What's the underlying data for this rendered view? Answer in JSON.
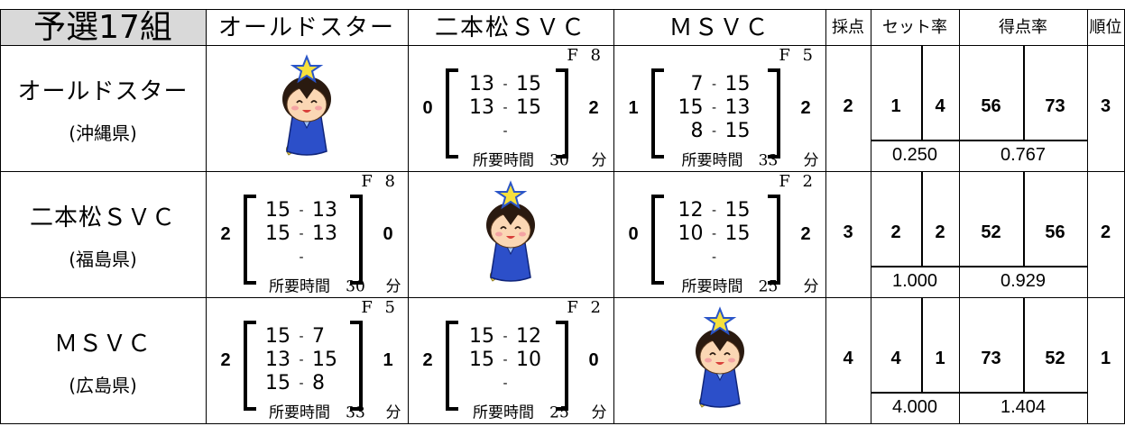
{
  "header": {
    "group": "予選17組",
    "teams": [
      "オールドスター",
      "二本松ＳＶＣ",
      "ＭＳＶＣ"
    ],
    "points": "採点",
    "set_rate": "セット率",
    "score_rate": "得点率",
    "rank": "順位"
  },
  "labels": {
    "separator": "-",
    "time_label": "所要時間",
    "time_unit": "分"
  },
  "rows": [
    {
      "team": "オールドスター",
      "prefecture": "(沖縄県)",
      "matches": [
        null,
        {
          "court": "F 8",
          "left": 0,
          "right": 2,
          "sets": [
            [
              13,
              15
            ],
            [
              13,
              15
            ],
            null
          ],
          "time": 30
        },
        {
          "court": "F 5",
          "left": 1,
          "right": 2,
          "sets": [
            [
              7,
              15
            ],
            [
              15,
              13
            ],
            [
              8,
              15
            ]
          ],
          "time": 33
        }
      ],
      "points": 2,
      "sets_won": 1,
      "sets_lost": 4,
      "set_rate": "0.250",
      "points_won": 56,
      "points_lost": 73,
      "score_rate": "0.767",
      "rank": 3
    },
    {
      "team": "二本松ＳＶＣ",
      "prefecture": "(福島県)",
      "matches": [
        {
          "court": "F 8",
          "left": 2,
          "right": 0,
          "sets": [
            [
              15,
              13
            ],
            [
              15,
              13
            ],
            null
          ],
          "time": 30
        },
        null,
        {
          "court": "F 2",
          "left": 0,
          "right": 2,
          "sets": [
            [
              12,
              15
            ],
            [
              10,
              15
            ],
            null
          ],
          "time": 25
        }
      ],
      "points": 3,
      "sets_won": 2,
      "sets_lost": 2,
      "set_rate": "1.000",
      "points_won": 52,
      "points_lost": 56,
      "score_rate": "0.929",
      "rank": 2
    },
    {
      "team": "ＭＳＶＣ",
      "prefecture": "(広島県)",
      "matches": [
        {
          "court": "F 5",
          "left": 2,
          "right": 1,
          "sets": [
            [
              15,
              7
            ],
            [
              13,
              15
            ],
            [
              15,
              8
            ]
          ],
          "time": 33
        },
        {
          "court": "F 2",
          "left": 2,
          "right": 0,
          "sets": [
            [
              15,
              12
            ],
            [
              15,
              10
            ],
            null
          ],
          "time": 25
        },
        null
      ],
      "points": 4,
      "sets_won": 4,
      "sets_lost": 1,
      "set_rate": "4.000",
      "points_won": 73,
      "points_lost": 52,
      "score_rate": "1.404",
      "rank": 1
    }
  ]
}
